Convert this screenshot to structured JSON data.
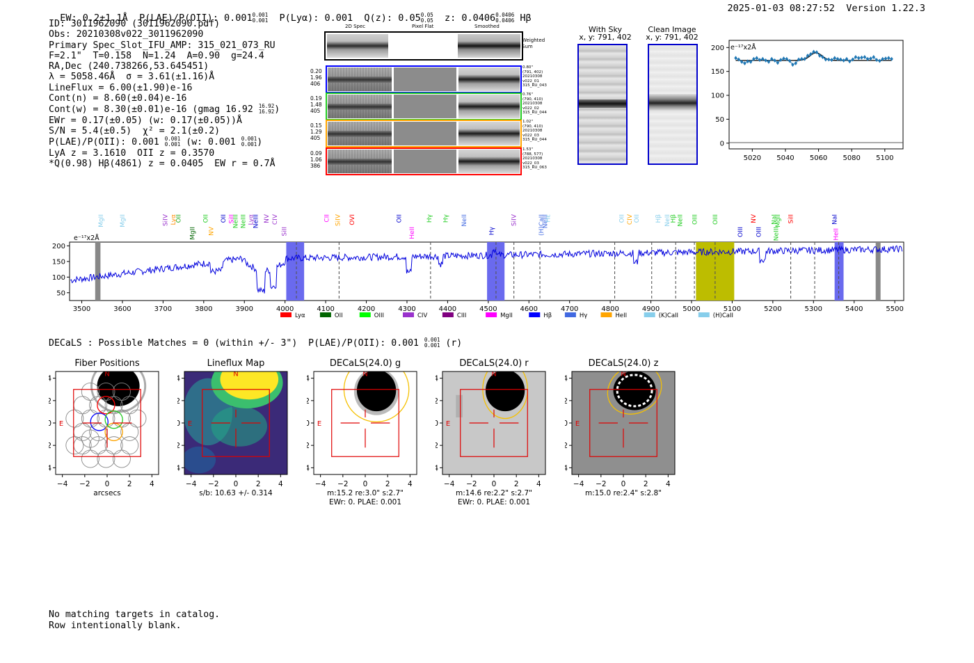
{
  "header": {
    "ew": "EW: 0.2±1.1Å",
    "plae_label": "P(LAE)/P(OII): 0.001",
    "plae_hi": "0.001",
    "plae_lo": "0.001",
    "plya": "P(Lyα): 0.001",
    "qz_label": "Q(z): 0.05",
    "qz_hi": "0.05",
    "qz_lo": "0.05",
    "z_label": "z: 0.0406",
    "z_hi": "0.0406",
    "z_lo": "0.0406",
    "z_line": "Hβ",
    "timestamp": "2025-01-03 08:27:52",
    "version": "Version 1.22.3"
  },
  "info": {
    "id": "ID: 3011962090 (3011962090.pdf)",
    "obs": "Obs: 20210308v022_3011962090",
    "primary": "Primary Spec_Slot_IFU_AMP: 315_021_073_RU",
    "fwhm": "F=2.1\"  T=0.158  N=1.24  A=0.90  g=24.4",
    "radec": "RA,Dec (240.738266,53.645451)",
    "lambda": "λ = 5058.46Å  σ = 3.61(±1.16)Å",
    "lineflux": "LineFlux = 6.00(±1.90)e-16",
    "contn": "Cont(n) = 8.60(±0.04)e-16",
    "contw": "Cont(w) = 8.30(±0.01)e-16 (gmag 16.92",
    "gmag_hi": "16.92",
    "gmag_lo": "16.92",
    "contw_close": ")",
    "ewr": "EWr = 0.17(±0.05) (w: 0.17(±0.05))Å",
    "sn": "S/N = 5.4(±0.5)  χ² = 2.1(±0.2)",
    "plae": "P(LAE)/P(OII): 0.001",
    "plae_hi": "0.001",
    "plae_lo": "0.001",
    "plae_w": " (w: 0.001",
    "plae_w_hi": "0.001",
    "plae_w_lo": "0.001",
    "plae_w_close": ")",
    "lya": "LyA z = 3.1610  OII z = 0.3570",
    "q": "*Q(0.98) Hβ(4861) z = 0.0405  EW r = 0.7Å"
  },
  "cutouts": {
    "col_2d": "2D Spec",
    "col_flat": "Pixel Flat",
    "col_smooth": "Smoothed",
    "weighted": "Weighted",
    "sum": "Sum",
    "rows": [
      {
        "w1": "0.20",
        "w2": "1.96",
        "w3": "406",
        "d": "0.80\"",
        "xy": "(791, 402)",
        "date": "20210308",
        "v": "v022_01",
        "amp": "315_RU_043",
        "color": "#0000ff"
      },
      {
        "w1": "0.19",
        "w2": "1.48",
        "w3": "405",
        "d": "0.76\"",
        "xy": "(790, 410)",
        "date": "20210308",
        "v": "v022_02",
        "amp": "315_RU_044",
        "color": "#22cc22"
      },
      {
        "w1": "0.15",
        "w2": "1.29",
        "w3": "405",
        "d": "1.02\"",
        "xy": "(790, 410)",
        "date": "20210308",
        "v": "v022_03",
        "amp": "315_RU_044",
        "color": "#ffa500"
      },
      {
        "w1": "0.09",
        "w2": "1.06",
        "w3": "386",
        "d": "1.53\"",
        "xy": "(788, 577)",
        "date": "20210308",
        "v": "v022_03",
        "amp": "315_RU_063",
        "color": "#ff0000"
      }
    ]
  },
  "sky": {
    "with_title": "With Sky",
    "with_xy": "x, y: 791, 402",
    "clean_title": "Clean Image",
    "clean_xy": "x, y: 791, 402"
  },
  "zoom": {
    "unit": "e⁻¹⁷x2Å",
    "yticks": [
      "0",
      "50",
      "100",
      "150",
      "200"
    ],
    "xticks": [
      "5020",
      "5040",
      "5060",
      "5080",
      "5100"
    ]
  },
  "spectrum": {
    "unit": "e⁻¹⁷x2Å",
    "yticks": [
      "50",
      "100",
      "150",
      "200"
    ],
    "xticks": [
      "3500",
      "3600",
      "3700",
      "3800",
      "3900",
      "4000",
      "4100",
      "4200",
      "4300",
      "4400",
      "4500",
      "4600",
      "4700",
      "4800",
      "4900",
      "5000",
      "5100",
      "5200",
      "5300",
      "5400",
      "5500"
    ],
    "lines": [
      {
        "t": "MgII",
        "c": "#87ceeb"
      },
      {
        "t": "MgII",
        "c": "#87ceeb"
      },
      {
        "t": "SiIV",
        "c": "#9932cc"
      },
      {
        "t": "Lyα",
        "c": "#ff8c00"
      },
      {
        "t": "OII",
        "c": "#22aa22"
      },
      {
        "t": "MgII",
        "c": "#006400"
      },
      {
        "t": "OII",
        "c": "#22cc22"
      },
      {
        "t": "NV",
        "c": "#ffa500"
      },
      {
        "t": "OII",
        "c": "#0000cd"
      },
      {
        "t": "SiII",
        "c": "#ff00ff"
      },
      {
        "t": "NeIII",
        "c": "#22cc22"
      },
      {
        "t": "NeIII",
        "c": "#22cc22"
      },
      {
        "t": "Lyα",
        "c": "#9932cc"
      },
      {
        "t": "NeIII",
        "c": "#0000cd"
      },
      {
        "t": "NV",
        "c": "#9932cc"
      },
      {
        "t": "CIV",
        "c": "#9932cc"
      },
      {
        "t": "SiII",
        "c": "#9932cc"
      },
      {
        "t": "CII",
        "c": "#ff00ff"
      },
      {
        "t": "SiIV",
        "c": "#ffa500"
      },
      {
        "t": "OVI",
        "c": "#ff0000"
      },
      {
        "t": "OII",
        "c": "#0000cd"
      },
      {
        "t": "HeII",
        "c": "#ff00ff"
      },
      {
        "t": "Hγ",
        "c": "#22cc22"
      },
      {
        "t": "Hγ",
        "c": "#22cc22"
      },
      {
        "t": "NeII",
        "c": "#4169e1"
      },
      {
        "t": "Hγ",
        "c": "#0000cd"
      },
      {
        "t": "SiIV",
        "c": "#9932cc"
      },
      {
        "t": "(H)CaII",
        "c": "#4169e1"
      },
      {
        "t": "NeIII",
        "c": "#4169e1"
      },
      {
        "t": "Hε",
        "c": "#87ceeb"
      },
      {
        "t": "OII",
        "c": "#87ceeb"
      },
      {
        "t": "CIV",
        "c": "#ffa500"
      },
      {
        "t": "OII",
        "c": "#87ceeb"
      },
      {
        "t": "Hβ",
        "c": "#87ceeb"
      },
      {
        "t": "NeII",
        "c": "#87ceeb"
      },
      {
        "t": "Hβ",
        "c": "#22cc22"
      },
      {
        "t": "NeII",
        "c": "#22cc22"
      },
      {
        "t": "OIII",
        "c": "#22cc22"
      },
      {
        "t": "OIII",
        "c": "#22cc22"
      },
      {
        "t": "OIII",
        "c": "#0000cd"
      },
      {
        "t": "NV",
        "c": "#ff0000"
      },
      {
        "t": "OIII",
        "c": "#0000cd"
      },
      {
        "t": "NaI",
        "c": "#22cc22"
      },
      {
        "t": "NeIII",
        "c": "#22cc22"
      },
      {
        "t": "MgII",
        "c": "#22cc22"
      },
      {
        "t": "SiII",
        "c": "#ff0000"
      },
      {
        "t": "NaI",
        "c": "#0000cd"
      },
      {
        "t": "HeII",
        "c": "#ff00ff"
      }
    ],
    "legend": [
      {
        "t": "Lyα",
        "c": "#ff0000"
      },
      {
        "t": "OII",
        "c": "#006400"
      },
      {
        "t": "OIII",
        "c": "#00ff00"
      },
      {
        "t": "CIV",
        "c": "#9932cc"
      },
      {
        "t": "CIII",
        "c": "#800080"
      },
      {
        "t": "MgII",
        "c": "#ff00ff"
      },
      {
        "t": "Hβ",
        "c": "#0000ff"
      },
      {
        "t": "Hγ",
        "c": "#4169e1"
      },
      {
        "t": "HeII",
        "c": "#ffa500"
      },
      {
        "t": "(K)CaII",
        "c": "#87ceeb"
      },
      {
        "t": "(H)CaII",
        "c": "#87ceeb"
      }
    ]
  },
  "decals": {
    "line": "DECaLS : Possible Matches = 0 (within +/- 3\")  P(LAE)/P(OII): 0.001",
    "hi": "0.001",
    "lo": "0.001",
    "band": " (r)"
  },
  "thumbs": [
    {
      "title": "Fiber Positions",
      "cap1": "arcsecs",
      "cap2": ""
    },
    {
      "title": "Lineflux Map",
      "cap1": "s/b: 10.63 +/- 0.314",
      "cap2": ""
    },
    {
      "title": "DECaLS(24.0) g",
      "cap1": "m:15.2  re:3.0\"  s:2.7\"",
      "cap2": "EWr: 0, PLAE: 0.001"
    },
    {
      "title": "DECaLS(24.0) r",
      "cap1": "m:14.6  re:2.2\"  s:2.7\"",
      "cap2": "EWr: 0, PLAE: 0.001"
    },
    {
      "title": "DECaLS(24.0) z",
      "cap1": "m:15.0  re:2.4\"  s:2.8\"",
      "cap2": ""
    }
  ],
  "thumb_axes": {
    "yticks": [
      "4",
      "2",
      "0",
      "−2",
      "−4"
    ],
    "xticks": [
      "−4",
      "−2",
      "0",
      "2",
      "4"
    ],
    "north": "N",
    "east": "E"
  },
  "footer": {
    "line1": "No matching targets in catalog.",
    "line2": "Row intentionally blank."
  }
}
